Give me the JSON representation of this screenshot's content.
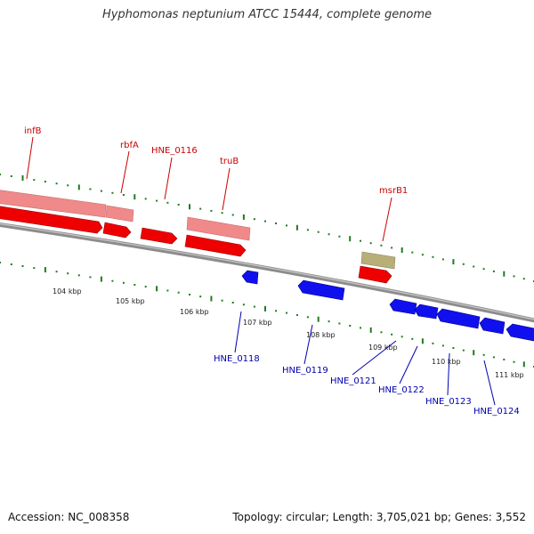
{
  "title": "Hyphomonas neptunium ATCC 15444, complete genome",
  "accession": "Accession: NC_008358",
  "topology": "Topology: circular; Length: 3,705,021 bp; Genes: 3,552",
  "colors": {
    "forward_gene": "#ee0000",
    "forward_gene_light": "#f08a8a",
    "reverse_gene": "#1010ee",
    "other_feature": "#b8ae78",
    "backbone": "#8c8c8c",
    "tick": "#1e7d1e",
    "forward_label": "#cc0000",
    "reverse_label": "#0000b0",
    "kbp_label": "#222222"
  },
  "scale_labels": [
    "104 kbp",
    "105 kbp",
    "106 kbp",
    "107 kbp",
    "108 kbp",
    "109 kbp",
    "110 kbp",
    "111 kbp"
  ],
  "forward_gene_labels": [
    "infB",
    "rbfA",
    "HNE_0116",
    "truB",
    "msrB1"
  ],
  "reverse_gene_labels": [
    "HNE_0118",
    "HNE_0119",
    "HNE_0121",
    "HNE_0122",
    "HNE_0123",
    "HNE_0124"
  ]
}
